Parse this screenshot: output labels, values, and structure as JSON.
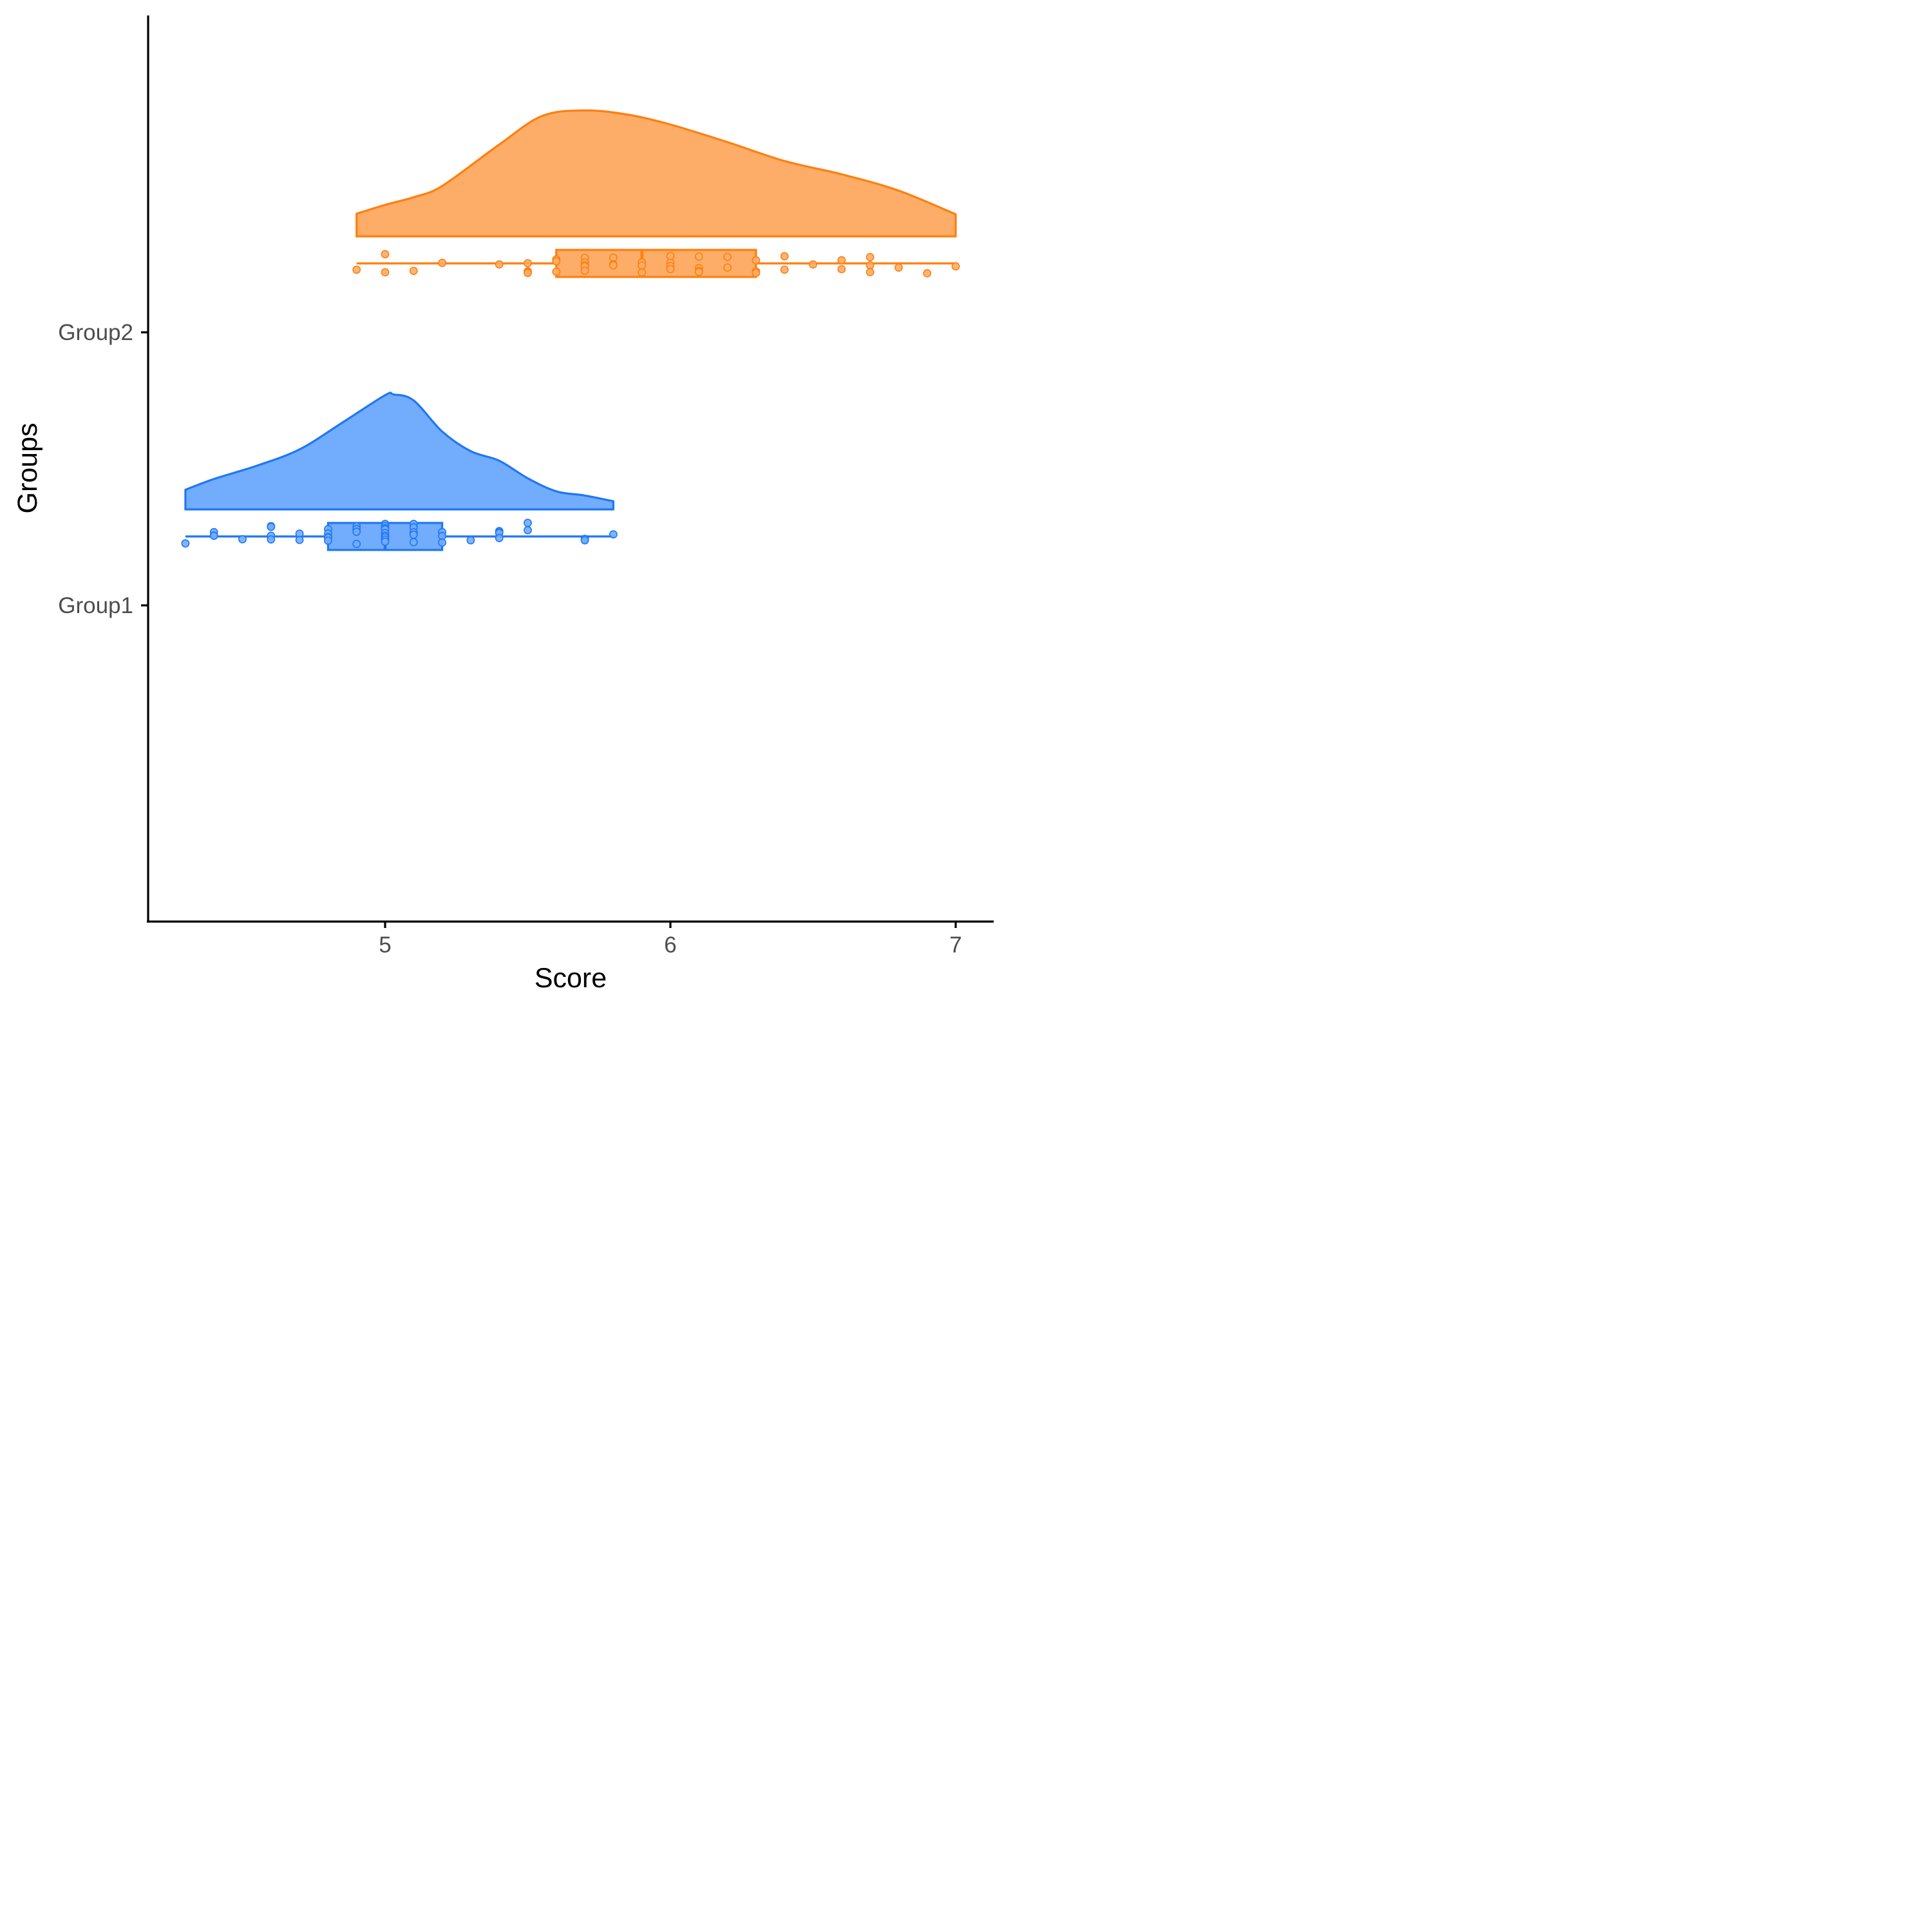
{
  "chart_data": {
    "type": "raincloud",
    "title": "",
    "xlabel": "Score",
    "ylabel": "Groups",
    "xlim": [
      4.17,
      7.13
    ],
    "x_ticks": [
      5,
      6,
      7
    ],
    "x_tick_labels": [
      "5",
      "6",
      "7"
    ],
    "categories": [
      "Group1",
      "Group2"
    ],
    "grid": false,
    "legend": "none",
    "series": [
      {
        "name": "Group1",
        "color": "#1F77F4",
        "fill": "#72ACFC",
        "density": {
          "x": [
            4.3,
            4.4,
            4.55,
            4.7,
            4.85,
            5.0,
            5.03,
            5.1,
            5.2,
            5.3,
            5.4,
            5.5,
            5.6,
            5.7,
            5.8
          ],
          "density": [
            0.113,
            0.175,
            0.251,
            0.345,
            0.499,
            0.657,
            0.661,
            0.627,
            0.448,
            0.335,
            0.28,
            0.179,
            0.104,
            0.08,
            0.047
          ]
        },
        "box": {
          "min": 4.3,
          "q1": 4.8,
          "median": 5.0,
          "q3": 5.2,
          "max": 5.8
        },
        "points": [
          {
            "x": 4.3,
            "jitter": -0.4
          },
          {
            "x": 4.4,
            "jitter": 0.25
          },
          {
            "x": 4.4,
            "jitter": 0.05
          },
          {
            "x": 4.4,
            "jitter": 0.04
          },
          {
            "x": 4.5,
            "jitter": -0.16
          },
          {
            "x": 4.6,
            "jitter": 0.59
          },
          {
            "x": 4.6,
            "jitter": 0.55
          },
          {
            "x": 4.6,
            "jitter": 0.04
          },
          {
            "x": 4.6,
            "jitter": -0.17
          },
          {
            "x": 4.7,
            "jitter": 0.16
          },
          {
            "x": 4.7,
            "jitter": -0.2
          },
          {
            "x": 4.8,
            "jitter": 0.42
          },
          {
            "x": 4.8,
            "jitter": 0.17
          },
          {
            "x": 4.8,
            "jitter": -0.04
          },
          {
            "x": 4.8,
            "jitter": -0.07
          },
          {
            "x": 4.8,
            "jitter": -0.24
          },
          {
            "x": 4.9,
            "jitter": 0.58
          },
          {
            "x": 4.9,
            "jitter": 0.43
          },
          {
            "x": 4.9,
            "jitter": 0.27
          },
          {
            "x": 4.9,
            "jitter": -0.43
          },
          {
            "x": 5.0,
            "jitter": 0.72
          },
          {
            "x": 5.0,
            "jitter": 0.6
          },
          {
            "x": 5.0,
            "jitter": 0.47
          },
          {
            "x": 5.0,
            "jitter": 0.41
          },
          {
            "x": 5.0,
            "jitter": 0.2
          },
          {
            "x": 5.0,
            "jitter": 0.04
          },
          {
            "x": 5.0,
            "jitter": -0.05
          },
          {
            "x": 5.0,
            "jitter": -0.18
          },
          {
            "x": 5.0,
            "jitter": -0.3
          },
          {
            "x": 5.1,
            "jitter": 0.72
          },
          {
            "x": 5.1,
            "jitter": 0.52
          },
          {
            "x": 5.1,
            "jitter": 0.24
          },
          {
            "x": 5.1,
            "jitter": 0.1
          },
          {
            "x": 5.1,
            "jitter": -0.33
          },
          {
            "x": 5.2,
            "jitter": 0.25
          },
          {
            "x": 5.2,
            "jitter": 0.02
          },
          {
            "x": 5.2,
            "jitter": -0.35
          },
          {
            "x": 5.3,
            "jitter": -0.22
          },
          {
            "x": 5.4,
            "jitter": 0.31
          },
          {
            "x": 5.4,
            "jitter": 0.23
          },
          {
            "x": 5.4,
            "jitter": 0.2
          },
          {
            "x": 5.4,
            "jitter": -0.09
          },
          {
            "x": 5.5,
            "jitter": 0.78
          },
          {
            "x": 5.5,
            "jitter": 0.36
          },
          {
            "x": 5.7,
            "jitter": -0.14
          },
          {
            "x": 5.7,
            "jitter": -0.22
          },
          {
            "x": 5.8,
            "jitter": 0.12
          }
        ]
      },
      {
        "name": "Group2",
        "color": "#FF7F0E",
        "fill": "#FDAD68",
        "density": {
          "x": [
            4.9,
            5.0,
            5.1,
            5.2,
            5.4,
            5.55,
            5.7,
            5.85,
            6.0,
            6.2,
            6.4,
            6.6,
            6.8,
            7.0
          ],
          "density": [
            0.13,
            0.181,
            0.225,
            0.29,
            0.528,
            0.692,
            0.724,
            0.7,
            0.643,
            0.542,
            0.433,
            0.357,
            0.263,
            0.127
          ]
        },
        "box": {
          "min": 4.9,
          "q1": 5.6,
          "median": 5.9,
          "q3": 6.3,
          "max": 7.0
        },
        "points": [
          {
            "x": 4.9,
            "jitter": -0.36
          },
          {
            "x": 5.0,
            "jitter": 0.53
          },
          {
            "x": 5.0,
            "jitter": -0.51
          },
          {
            "x": 5.1,
            "jitter": -0.43
          },
          {
            "x": 5.2,
            "jitter": 0.03
          },
          {
            "x": 5.4,
            "jitter": -0.06
          },
          {
            "x": 5.5,
            "jitter": 0.01
          },
          {
            "x": 5.5,
            "jitter": -0.46
          },
          {
            "x": 5.5,
            "jitter": -0.51
          },
          {
            "x": 5.5,
            "jitter": -0.55
          },
          {
            "x": 5.6,
            "jitter": 0.23
          },
          {
            "x": 5.6,
            "jitter": 0.12
          },
          {
            "x": 5.6,
            "jitter": -0.48
          },
          {
            "x": 5.7,
            "jitter": 0.32
          },
          {
            "x": 5.7,
            "jitter": 0.06
          },
          {
            "x": 5.7,
            "jitter": -0.11
          },
          {
            "x": 5.7,
            "jitter": -0.17
          },
          {
            "x": 5.7,
            "jitter": -0.42
          },
          {
            "x": 5.8,
            "jitter": 0.33
          },
          {
            "x": 5.8,
            "jitter": -0.05
          },
          {
            "x": 5.8,
            "jitter": -0.11
          },
          {
            "x": 5.9,
            "jitter": 0.06
          },
          {
            "x": 5.9,
            "jitter": -0.12
          },
          {
            "x": 5.9,
            "jitter": -0.52
          },
          {
            "x": 6.0,
            "jitter": 0.43
          },
          {
            "x": 6.0,
            "jitter": 0.04
          },
          {
            "x": 6.0,
            "jitter": -0.16
          },
          {
            "x": 6.0,
            "jitter": -0.33
          },
          {
            "x": 6.1,
            "jitter": 0.39
          },
          {
            "x": 6.1,
            "jitter": -0.27
          },
          {
            "x": 6.1,
            "jitter": -0.43
          },
          {
            "x": 6.1,
            "jitter": -0.49
          },
          {
            "x": 6.2,
            "jitter": 0.37
          },
          {
            "x": 6.2,
            "jitter": -0.24
          },
          {
            "x": 6.3,
            "jitter": 0.18
          },
          {
            "x": 6.3,
            "jitter": -0.46
          },
          {
            "x": 6.3,
            "jitter": -0.55
          },
          {
            "x": 6.4,
            "jitter": 0.41
          },
          {
            "x": 6.4,
            "jitter": -0.36
          },
          {
            "x": 6.5,
            "jitter": -0.06
          },
          {
            "x": 6.6,
            "jitter": 0.18
          },
          {
            "x": 6.6,
            "jitter": -0.33
          },
          {
            "x": 6.7,
            "jitter": 0.36
          },
          {
            "x": 6.7,
            "jitter": -0.11
          },
          {
            "x": 6.7,
            "jitter": -0.5
          },
          {
            "x": 6.8,
            "jitter": -0.24
          },
          {
            "x": 6.9,
            "jitter": -0.57
          },
          {
            "x": 7.0,
            "jitter": -0.17
          }
        ]
      }
    ]
  }
}
